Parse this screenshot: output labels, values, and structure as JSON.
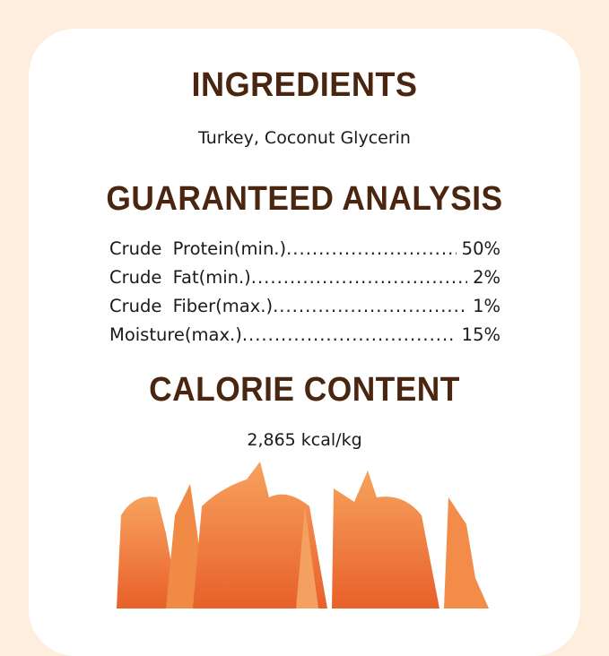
{
  "ingredients": {
    "title": "INGREDIENTS",
    "text": "Turkey, Coconut Glycerin"
  },
  "analysis": {
    "title": "GUARANTEED ANALYSIS",
    "rows": [
      {
        "label": "Crude Protein(min.)",
        "value": "50%"
      },
      {
        "label": "Crude Fat(min.)",
        "value": "2%"
      },
      {
        "label": "Crude Fiber(max.)",
        "value": "1%"
      },
      {
        "label": "Moisture(max.)",
        "value": "15%"
      }
    ]
  },
  "calorie": {
    "title": "CALORIE CONTENT",
    "text": "2,865 kcal/kg"
  },
  "colors": {
    "background": "#fdeedd",
    "heading": "#4a2510",
    "jerky": "#f07a3a"
  }
}
